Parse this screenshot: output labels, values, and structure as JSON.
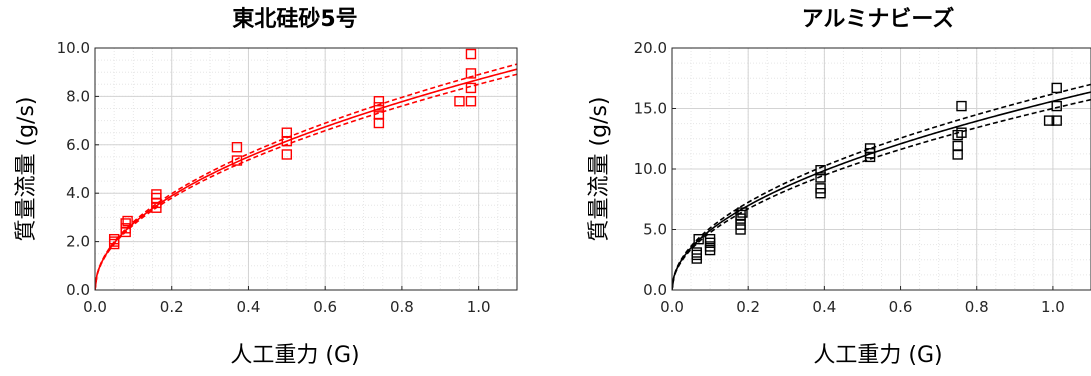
{
  "chart_data": [
    {
      "type": "scatter",
      "title": "東北硅砂5号",
      "xlabel": "人工重力 (G)",
      "ylabel": "質量流量 (g/s)",
      "xlim": [
        0,
        1.1
      ],
      "ylim": [
        0,
        10
      ],
      "xticks": [
        0,
        0.2,
        0.4,
        0.6,
        0.8,
        1.0
      ],
      "yticks": [
        0,
        2,
        4,
        6,
        8,
        10
      ],
      "xtick_labels": [
        "0.0",
        "0.2",
        "0.4",
        "0.6",
        "0.8",
        "1.0"
      ],
      "ytick_labels": [
        "0.0",
        "2.0",
        "4.0",
        "6.0",
        "8.0",
        "10.0"
      ],
      "grid": true,
      "color": "#ff0000",
      "points": [
        [
          0.05,
          1.9
        ],
        [
          0.05,
          2.0
        ],
        [
          0.05,
          2.1
        ],
        [
          0.08,
          2.4
        ],
        [
          0.08,
          2.55
        ],
        [
          0.08,
          2.75
        ],
        [
          0.085,
          2.85
        ],
        [
          0.16,
          3.4
        ],
        [
          0.16,
          3.6
        ],
        [
          0.16,
          3.8
        ],
        [
          0.16,
          3.95
        ],
        [
          0.37,
          5.35
        ],
        [
          0.37,
          5.9
        ],
        [
          0.5,
          5.6
        ],
        [
          0.5,
          6.15
        ],
        [
          0.5,
          6.5
        ],
        [
          0.74,
          6.9
        ],
        [
          0.74,
          7.25
        ],
        [
          0.74,
          7.55
        ],
        [
          0.74,
          7.8
        ],
        [
          0.95,
          7.8
        ],
        [
          0.98,
          7.8
        ],
        [
          0.98,
          8.35
        ],
        [
          0.98,
          8.95
        ],
        [
          0.98,
          9.75
        ]
      ],
      "fit": {
        "coef": 8.7,
        "exp": 0.5
      },
      "ci_upper": {
        "coef": 8.9,
        "exp": 0.5
      },
      "ci_lower": {
        "coef": 8.5,
        "exp": 0.5
      }
    },
    {
      "type": "scatter",
      "title": "アルミナビーズ",
      "xlabel": "人工重力 (G)",
      "ylabel": "質量流量 (g/s)",
      "xlim": [
        0,
        1.1
      ],
      "ylim": [
        0,
        20
      ],
      "xticks": [
        0,
        0.2,
        0.4,
        0.6,
        0.8,
        1.0
      ],
      "yticks": [
        0,
        5,
        10,
        15,
        20
      ],
      "xtick_labels": [
        "0.0",
        "0.2",
        "0.4",
        "0.6",
        "0.8",
        "1.0"
      ],
      "ytick_labels": [
        "0.0",
        "5.0",
        "10.0",
        "15.0",
        "20.0"
      ],
      "grid": true,
      "color": "#000000",
      "points": [
        [
          0.065,
          2.6
        ],
        [
          0.065,
          2.9
        ],
        [
          0.065,
          3.1
        ],
        [
          0.07,
          4.2
        ],
        [
          0.1,
          3.3
        ],
        [
          0.1,
          3.6
        ],
        [
          0.1,
          3.9
        ],
        [
          0.1,
          4.2
        ],
        [
          0.18,
          5.0
        ],
        [
          0.18,
          5.4
        ],
        [
          0.18,
          5.9
        ],
        [
          0.18,
          6.2
        ],
        [
          0.185,
          6.4
        ],
        [
          0.39,
          8.0
        ],
        [
          0.39,
          8.4
        ],
        [
          0.39,
          9.3
        ],
        [
          0.39,
          9.9
        ],
        [
          0.52,
          11.0
        ],
        [
          0.52,
          11.3
        ],
        [
          0.52,
          11.7
        ],
        [
          0.75,
          11.2
        ],
        [
          0.75,
          11.9
        ],
        [
          0.75,
          12.8
        ],
        [
          0.76,
          13.0
        ],
        [
          0.76,
          15.2
        ],
        [
          0.99,
          14.0
        ],
        [
          1.01,
          14.0
        ],
        [
          1.01,
          15.2
        ],
        [
          1.01,
          16.7
        ]
      ],
      "fit": {
        "coef": 15.6,
        "exp": 0.5
      },
      "ci_upper": {
        "coef": 16.2,
        "exp": 0.5
      },
      "ci_lower": {
        "coef": 15.0,
        "exp": 0.5
      }
    }
  ]
}
